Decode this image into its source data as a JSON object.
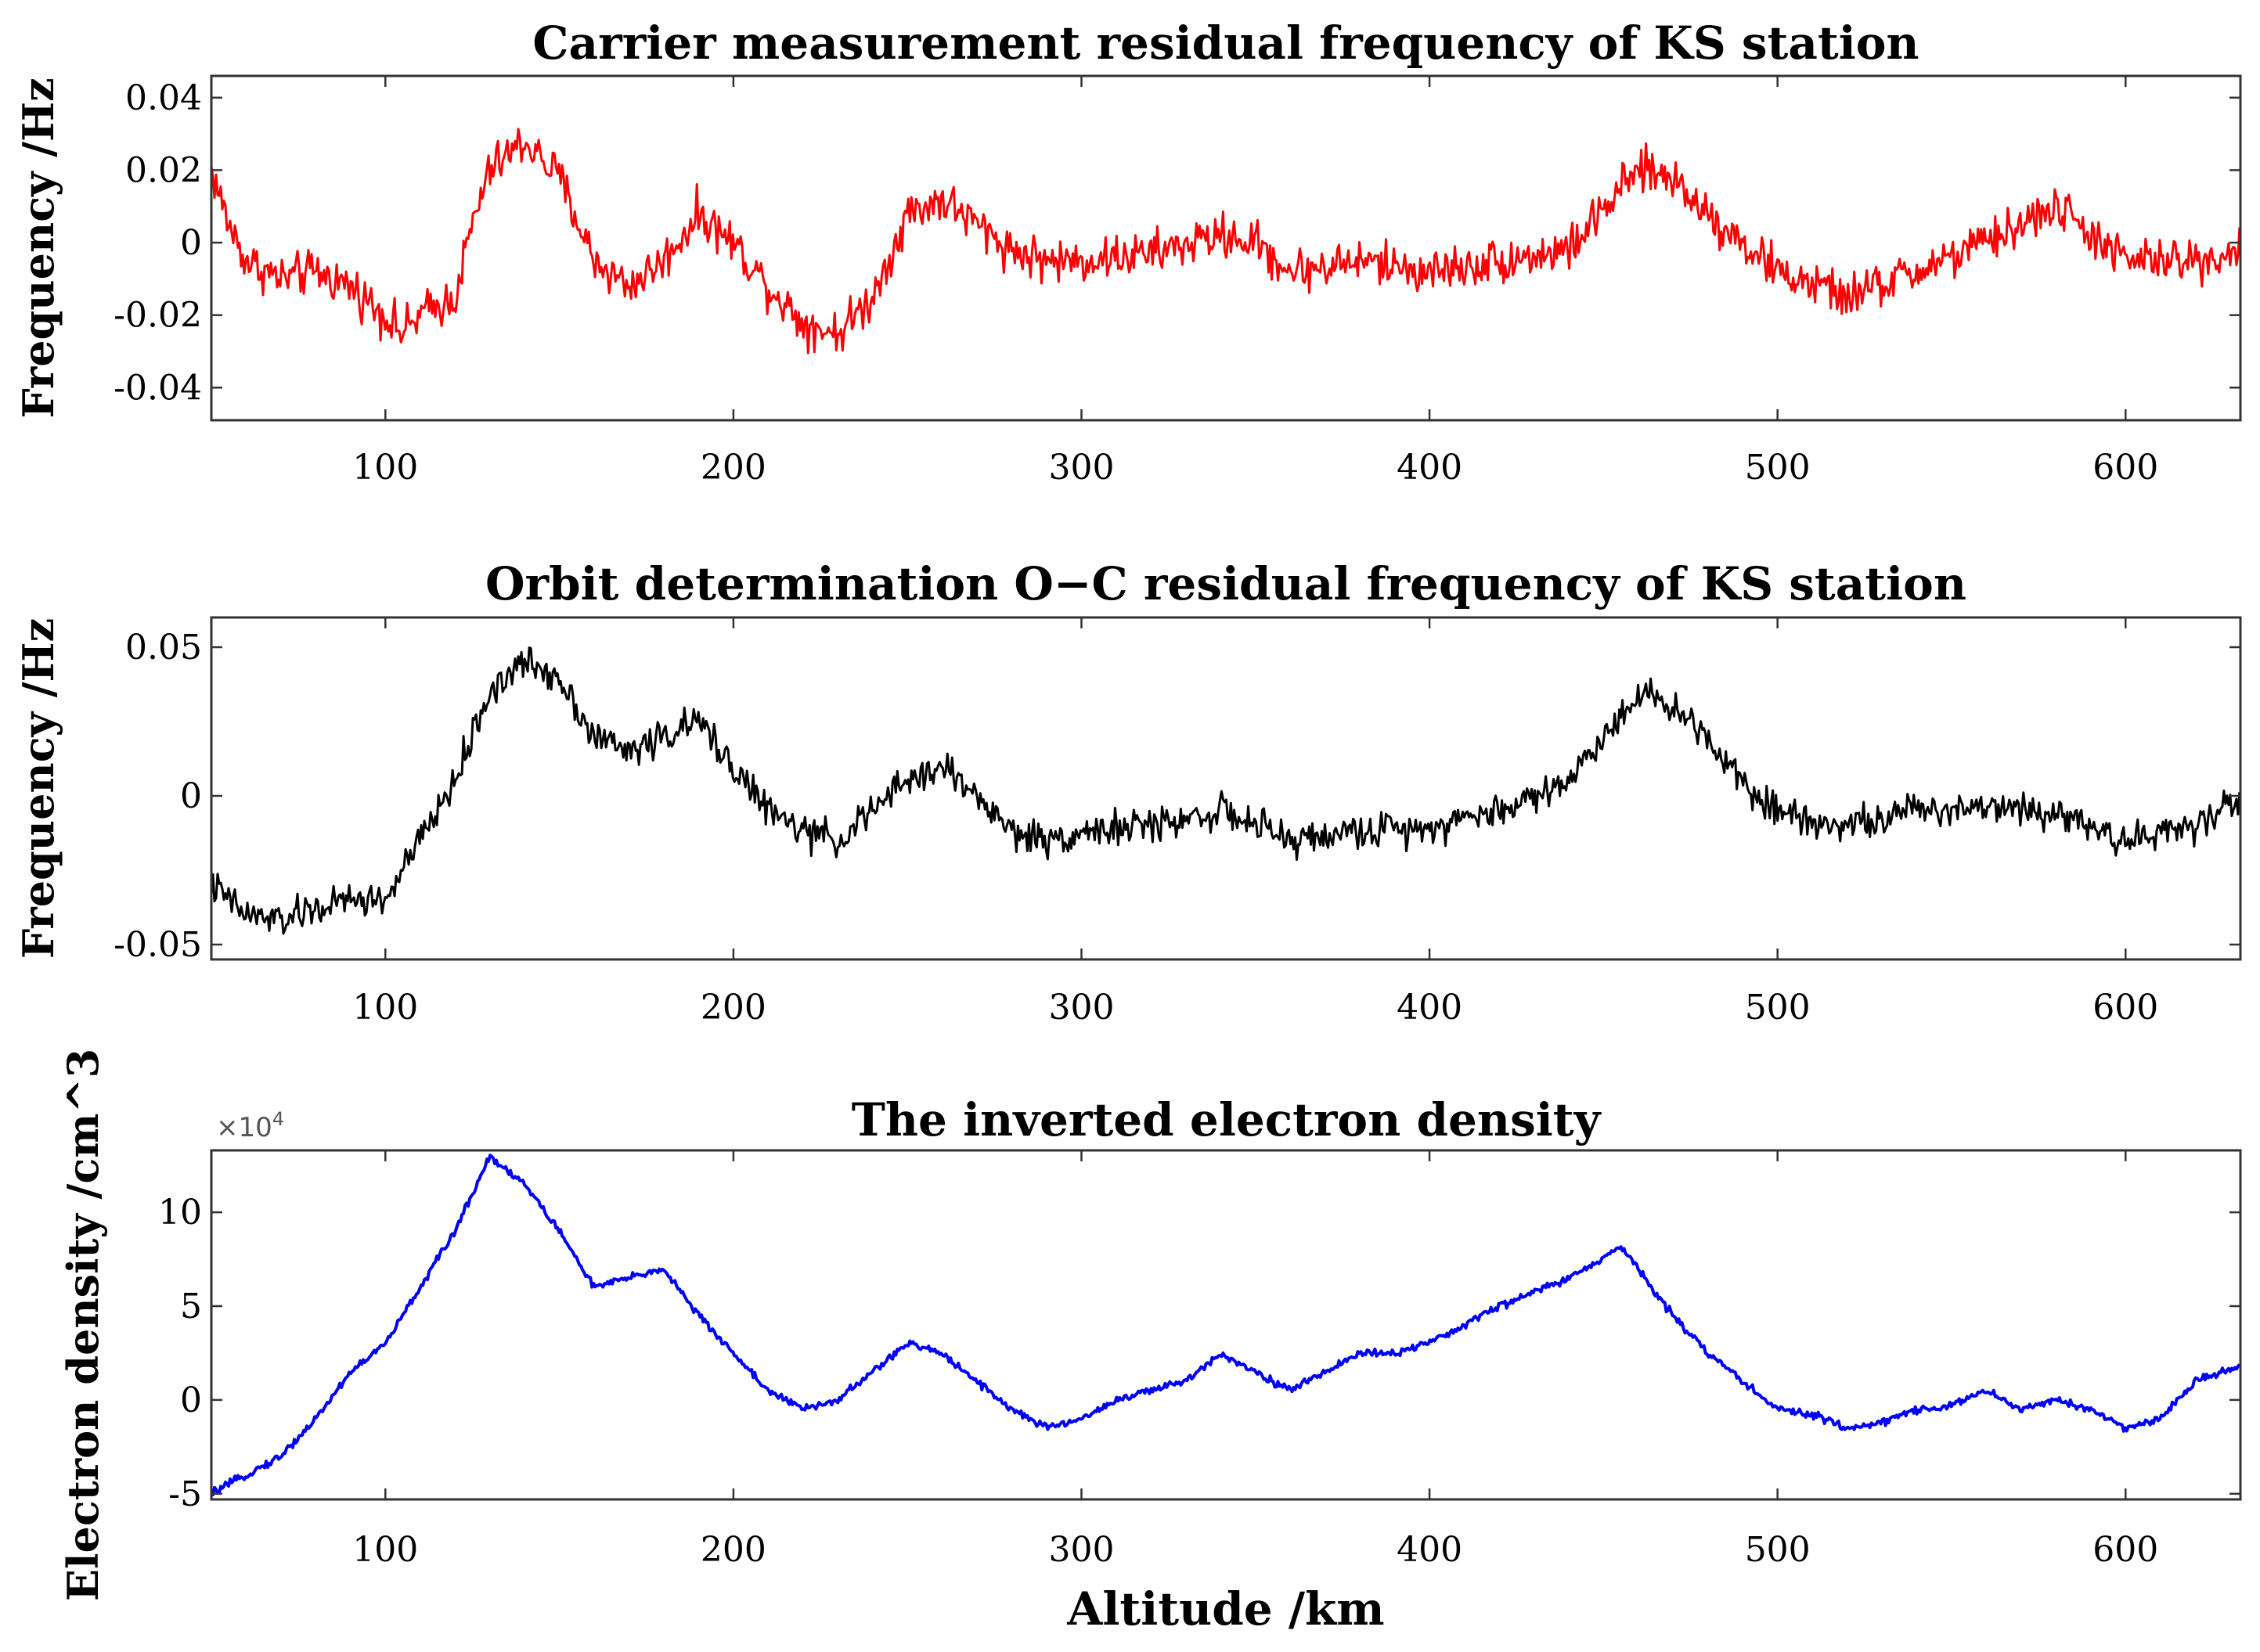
{
  "chart_data": [
    {
      "type": "line",
      "title": "Carrier measurement residual frequency of KS station",
      "xlabel": "",
      "ylabel": "Frequency /Hz",
      "xlim": [
        50,
        633
      ],
      "ylim": [
        -0.049,
        0.046
      ],
      "xticks": [
        100,
        200,
        300,
        400,
        500,
        600
      ],
      "xtick_labels": [
        "100",
        "200",
        "300",
        "400",
        "500",
        "600"
      ],
      "yticks": [
        -0.04,
        -0.02,
        0,
        0.02,
        0.04
      ],
      "ytick_labels": [
        "-0.04",
        "-0.02",
        "0",
        "0.02",
        "0.04"
      ],
      "color": "#ff0000",
      "series": [
        {
          "name": "Carrier residual",
          "noise": 0.009,
          "x": [
            50,
            55,
            60,
            70,
            80,
            90,
            100,
            105,
            110,
            120,
            125,
            130,
            140,
            150,
            160,
            170,
            180,
            190,
            200,
            210,
            220,
            230,
            240,
            250,
            260,
            270,
            280,
            290,
            300,
            320,
            340,
            350,
            360,
            380,
            400,
            420,
            440,
            460,
            470,
            480,
            500,
            520,
            540,
            560,
            580,
            600,
            620,
            633
          ],
          "values": [
            0.02,
            0.005,
            -0.005,
            -0.01,
            -0.008,
            -0.012,
            -0.02,
            -0.025,
            -0.02,
            -0.015,
            0.005,
            0.02,
            0.028,
            0.018,
            -0.005,
            -0.012,
            -0.005,
            0.008,
            0.0,
            -0.012,
            -0.022,
            -0.025,
            -0.015,
            0.008,
            0.012,
            0.005,
            -0.002,
            -0.005,
            -0.005,
            -0.003,
            0.002,
            0.0,
            -0.008,
            -0.005,
            -0.008,
            -0.005,
            -0.002,
            0.02,
            0.018,
            0.008,
            -0.008,
            -0.015,
            -0.008,
            0.0,
            0.01,
            -0.005,
            -0.005,
            -0.002
          ]
        }
      ]
    },
    {
      "type": "line",
      "title": "Orbit determination O−C residual frequency of KS station",
      "xlabel": "",
      "ylabel": "Frequency /Hz",
      "xlim": [
        50,
        633
      ],
      "ylim": [
        -0.055,
        0.06
      ],
      "xticks": [
        100,
        200,
        300,
        400,
        500,
        600
      ],
      "xtick_labels": [
        "100",
        "200",
        "300",
        "400",
        "500",
        "600"
      ],
      "yticks": [
        -0.05,
        0,
        0.05
      ],
      "ytick_labels": [
        "-0.05",
        "0",
        "0.05"
      ],
      "color": "#000000",
      "series": [
        {
          "name": "O-C residual",
          "noise": 0.0085,
          "x": [
            50,
            60,
            70,
            80,
            90,
            100,
            110,
            120,
            130,
            140,
            150,
            160,
            170,
            180,
            190,
            200,
            210,
            220,
            230,
            240,
            250,
            260,
            270,
            280,
            290,
            300,
            320,
            340,
            360,
            380,
            400,
            420,
            440,
            450,
            460,
            470,
            480,
            490,
            500,
            520,
            540,
            560,
            580,
            600,
            620,
            633
          ],
          "values": [
            -0.03,
            -0.04,
            -0.042,
            -0.038,
            -0.035,
            -0.035,
            -0.015,
            0.005,
            0.035,
            0.045,
            0.04,
            0.02,
            0.015,
            0.02,
            0.025,
            0.01,
            -0.005,
            -0.012,
            -0.015,
            -0.005,
            0.005,
            0.01,
            0.0,
            -0.012,
            -0.015,
            -0.012,
            -0.01,
            -0.005,
            -0.015,
            -0.012,
            -0.01,
            -0.005,
            0.005,
            0.02,
            0.035,
            0.03,
            0.02,
            0.005,
            -0.005,
            -0.01,
            -0.005,
            -0.003,
            -0.005,
            -0.015,
            -0.01,
            0.0
          ]
        }
      ]
    },
    {
      "type": "line",
      "title": "The inverted electron density",
      "xlabel": "Altitude /km",
      "ylabel": "Electron density /cm^3",
      "exponent_label": "×10",
      "exponent_power": "4",
      "xlim": [
        50,
        633
      ],
      "ylim": [
        -5.3,
        13.3
      ],
      "xticks": [
        100,
        200,
        300,
        400,
        500,
        600
      ],
      "xtick_labels": [
        "100",
        "200",
        "300",
        "400",
        "500",
        "600"
      ],
      "yticks": [
        -5,
        0,
        5,
        10
      ],
      "ytick_labels": [
        "-5",
        "0",
        "5",
        "10"
      ],
      "color": "#0000ff",
      "series": [
        {
          "name": "Electron density",
          "noise": 0.3,
          "x": [
            50,
            60,
            70,
            80,
            90,
            100,
            110,
            120,
            130,
            140,
            150,
            160,
            170,
            180,
            190,
            200,
            210,
            220,
            230,
            240,
            250,
            260,
            270,
            280,
            290,
            300,
            310,
            320,
            330,
            340,
            350,
            360,
            370,
            380,
            390,
            400,
            420,
            440,
            450,
            455,
            460,
            470,
            480,
            490,
            500,
            510,
            520,
            530,
            540,
            550,
            560,
            570,
            580,
            590,
            600,
            610,
            620,
            633
          ],
          "values": [
            -5,
            -4,
            -3,
            -1,
            1.5,
            3,
            6,
            9,
            13,
            11.5,
            9,
            6,
            6.5,
            7,
            4.5,
            2.5,
            0.5,
            -0.5,
            0,
            1.5,
            3,
            2.5,
            1,
            -0.5,
            -1.5,
            -1,
            0,
            0.5,
            1,
            2.5,
            1.5,
            0.5,
            1.5,
            2.5,
            2.5,
            3,
            5,
            6.5,
            7.5,
            8.2,
            7,
            4.5,
            2.5,
            1,
            -0.5,
            -0.8,
            -1.5,
            -1.2,
            -0.5,
            -0.3,
            0.5,
            -0.5,
            0,
            -0.5,
            -1.5,
            -1,
            1,
            1.8
          ]
        }
      ]
    }
  ]
}
